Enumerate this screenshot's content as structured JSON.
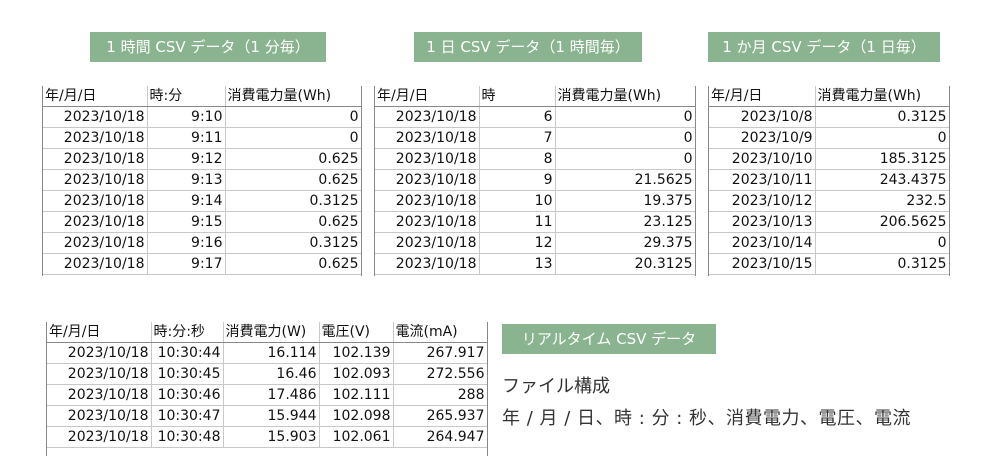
{
  "badges": {
    "minute": "1 時間 CSV データ（1 分毎）",
    "hourly": "1 日 CSV データ（1 時間毎）",
    "daily": "1 か月 CSV データ（1 日毎）",
    "realtime": "リアルタイム CSV データ"
  },
  "minute_table": {
    "headers": [
      "年/月/日",
      "時:分",
      "消費電力量(Wh)"
    ],
    "rows": [
      [
        "2023/10/18",
        "9:10",
        "0"
      ],
      [
        "2023/10/18",
        "9:11",
        "0"
      ],
      [
        "2023/10/18",
        "9:12",
        "0.625"
      ],
      [
        "2023/10/18",
        "9:13",
        "0.625"
      ],
      [
        "2023/10/18",
        "9:14",
        "0.3125"
      ],
      [
        "2023/10/18",
        "9:15",
        "0.625"
      ],
      [
        "2023/10/18",
        "9:16",
        "0.3125"
      ],
      [
        "2023/10/18",
        "9:17",
        "0.625"
      ]
    ]
  },
  "hourly_table": {
    "headers": [
      "年/月/日",
      "時",
      "消費電力量(Wh)"
    ],
    "rows": [
      [
        "2023/10/18",
        "6",
        "0"
      ],
      [
        "2023/10/18",
        "7",
        "0"
      ],
      [
        "2023/10/18",
        "8",
        "0"
      ],
      [
        "2023/10/18",
        "9",
        "21.5625"
      ],
      [
        "2023/10/18",
        "10",
        "19.375"
      ],
      [
        "2023/10/18",
        "11",
        "23.125"
      ],
      [
        "2023/10/18",
        "12",
        "29.375"
      ],
      [
        "2023/10/18",
        "13",
        "20.3125"
      ]
    ]
  },
  "daily_table": {
    "headers": [
      "年/月/日",
      "消費電力量(Wh)"
    ],
    "rows": [
      [
        "2023/10/8",
        "0.3125"
      ],
      [
        "2023/10/9",
        "0"
      ],
      [
        "2023/10/10",
        "185.3125"
      ],
      [
        "2023/10/11",
        "243.4375"
      ],
      [
        "2023/10/12",
        "232.5"
      ],
      [
        "2023/10/13",
        "206.5625"
      ],
      [
        "2023/10/14",
        "0"
      ],
      [
        "2023/10/15",
        "0.3125"
      ]
    ]
  },
  "realtime_table": {
    "headers": [
      "年/月/日",
      "時:分:秒",
      "消費電力(W)",
      "電圧(V)",
      "電流(mA)"
    ],
    "rows": [
      [
        "2023/10/18",
        "10:30:44",
        "16.114",
        "102.139",
        "267.917"
      ],
      [
        "2023/10/18",
        "10:30:45",
        "16.46",
        "102.093",
        "272.556"
      ],
      [
        "2023/10/18",
        "10:30:46",
        "17.486",
        "102.111",
        "288"
      ],
      [
        "2023/10/18",
        "10:30:47",
        "15.944",
        "102.098",
        "265.937"
      ],
      [
        "2023/10/18",
        "10:30:48",
        "15.903",
        "102.061",
        "264.947"
      ]
    ]
  },
  "file_structure": {
    "title": "ファイル構成",
    "line": "年 / 月 / 日、時 : 分 : 秒、消費電力、電圧、電流"
  },
  "colors": {
    "badge_bg": "#8ab48f",
    "badge_text": "#ffffff",
    "grid": "#c8c8c8"
  }
}
